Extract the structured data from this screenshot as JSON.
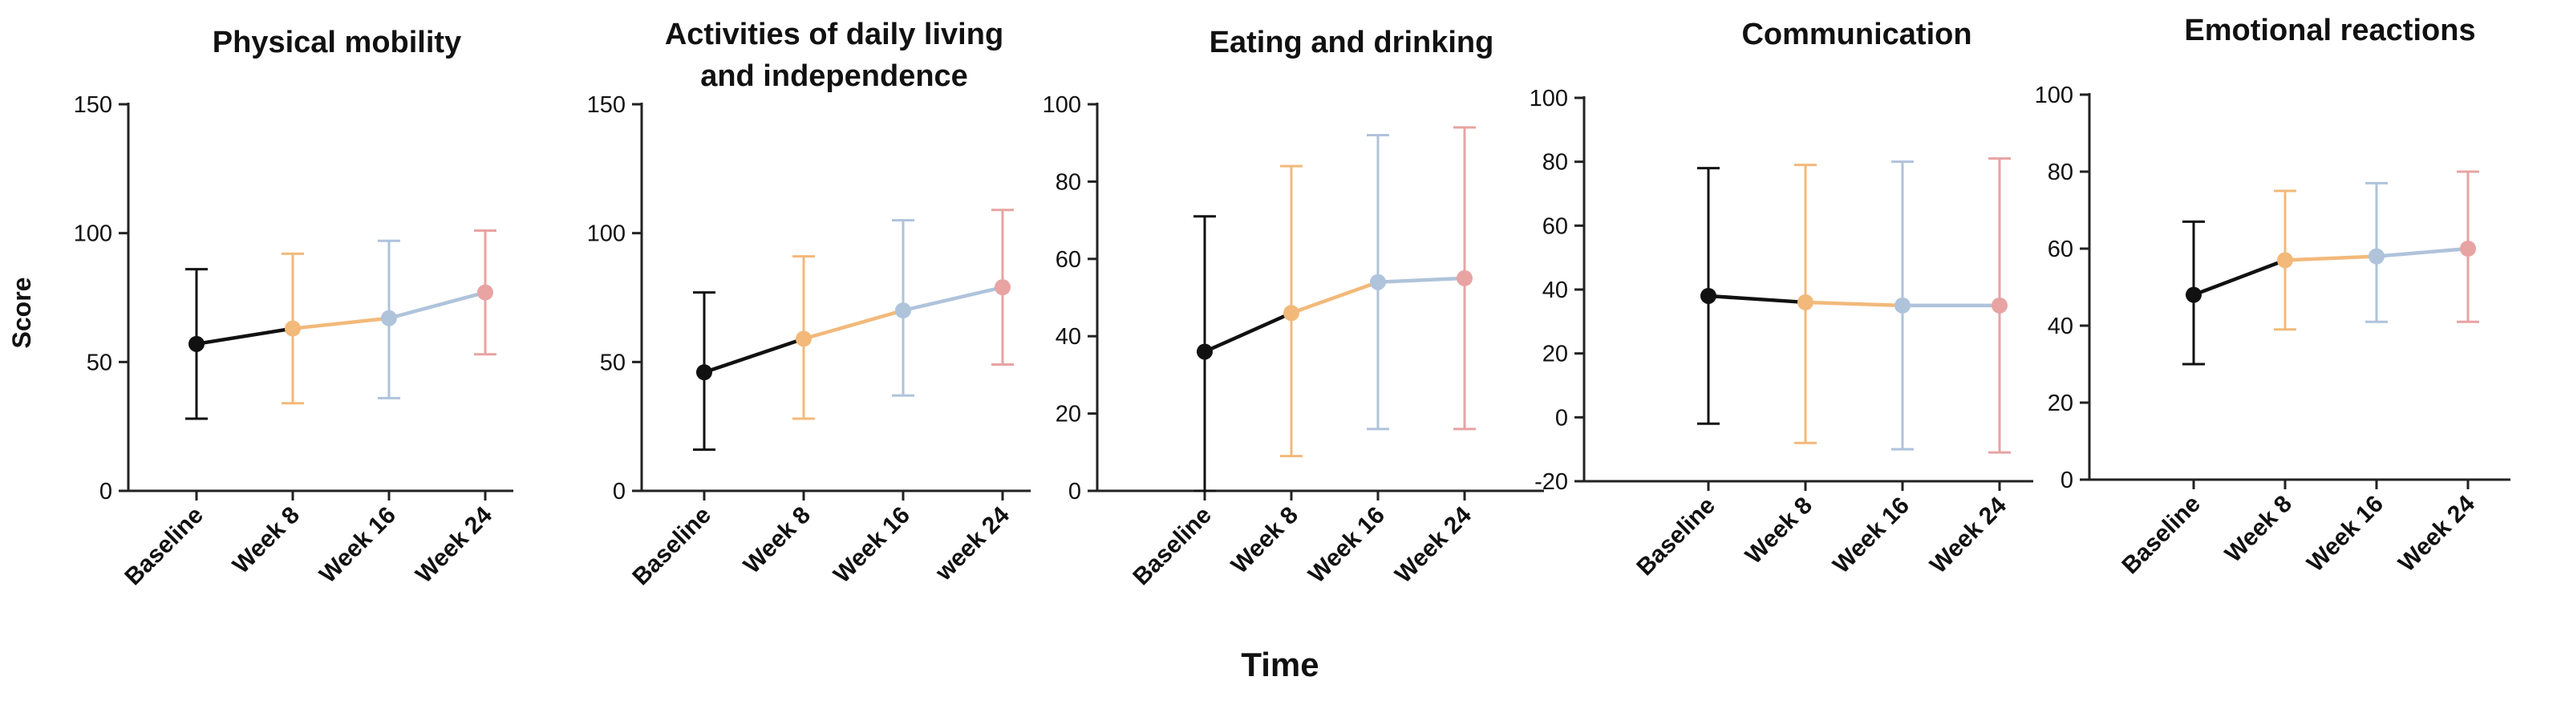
{
  "figure": {
    "y_axis_label": "Score",
    "x_axis_label": "Time"
  },
  "colors": {
    "baseline": "#111111",
    "week8": "#F2B97A",
    "week16": "#AFC3DB",
    "week24": "#E8A3A3",
    "axis": "#222222"
  },
  "chart_data": [
    {
      "type": "line",
      "title_lines": [
        "Physical mobility"
      ],
      "categories": [
        "Baseline",
        "Week 8",
        "Week 16",
        "Week 24"
      ],
      "values": [
        57,
        63,
        67,
        77
      ],
      "error_low": [
        28,
        34,
        36,
        53
      ],
      "error_high": [
        86,
        92,
        97,
        101
      ],
      "ylim": [
        0,
        150
      ],
      "yticks": [
        0,
        50,
        100,
        150
      ]
    },
    {
      "type": "line",
      "title_lines": [
        "Activities of daily living",
        "and independence"
      ],
      "categories": [
        "Baseline",
        "Week 8",
        "Week 16",
        "week 24"
      ],
      "values": [
        46,
        59,
        70,
        79
      ],
      "error_low": [
        16,
        28,
        37,
        49
      ],
      "error_high": [
        77,
        91,
        105,
        109
      ],
      "ylim": [
        0,
        150
      ],
      "yticks": [
        0,
        50,
        100,
        150
      ]
    },
    {
      "type": "line",
      "title_lines": [
        "Eating and drinking"
      ],
      "categories": [
        "Baseline",
        "Week 8",
        "Week 16",
        "Week 24"
      ],
      "values": [
        36,
        46,
        54,
        55
      ],
      "error_low": [
        0,
        9,
        16,
        16
      ],
      "error_high": [
        71,
        84,
        92,
        94
      ],
      "ylim": [
        0,
        100
      ],
      "yticks": [
        0,
        20,
        40,
        60,
        80,
        100
      ]
    },
    {
      "type": "line",
      "title_lines": [
        "Communication"
      ],
      "categories": [
        "Baseline",
        "Week 8",
        "Week 16",
        "Week 24"
      ],
      "values": [
        38,
        36,
        35,
        35
      ],
      "error_low": [
        -2,
        -8,
        -10,
        -11
      ],
      "error_high": [
        78,
        79,
        80,
        81
      ],
      "ylim": [
        -20,
        100
      ],
      "yticks": [
        -20,
        0,
        20,
        40,
        60,
        80,
        100
      ]
    },
    {
      "type": "line",
      "title_lines": [
        "Emotional reactions"
      ],
      "categories": [
        "Baseline",
        "Week 8",
        "Week 16",
        "Week 24"
      ],
      "values": [
        48,
        57,
        58,
        60
      ],
      "error_low": [
        30,
        39,
        41,
        41
      ],
      "error_high": [
        67,
        75,
        77,
        80
      ],
      "ylim": [
        0,
        100
      ],
      "yticks": [
        0,
        20,
        40,
        60,
        80,
        100
      ]
    }
  ]
}
